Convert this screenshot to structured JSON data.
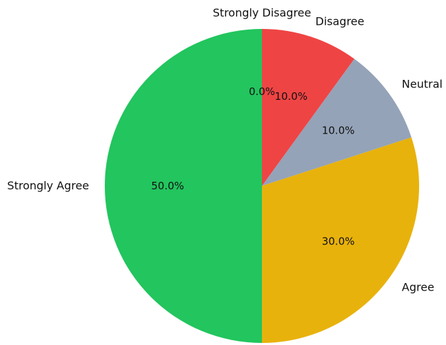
{
  "chart_data": {
    "type": "pie",
    "title": "",
    "categories": [
      "Strongly Disagree",
      "Disagree",
      "Neutral",
      "Agree",
      "Strongly Agree"
    ],
    "values": [
      0.0,
      10.0,
      10.0,
      30.0,
      50.0
    ],
    "percent_labels": [
      "0.0%",
      "10.0%",
      "10.0%",
      "30.0%",
      "50.0%"
    ],
    "colors": [
      "#3b82f6",
      "#ef4444",
      "#94a3b8",
      "#e8b20c",
      "#22c55e"
    ],
    "start_angle_deg": 90,
    "direction": "clockwise",
    "legend": "none"
  }
}
